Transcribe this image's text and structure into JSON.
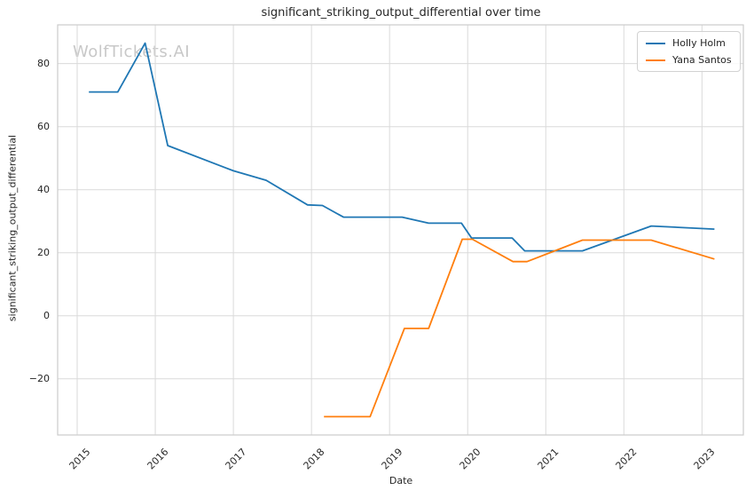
{
  "watermark": "WolfTickets.AI",
  "colors": {
    "background": "#ffffff",
    "grid": "#dadada",
    "spine": "#cccccc",
    "text": "#262626",
    "watermark": "#c8c8c8"
  },
  "chart_data": {
    "type": "line",
    "title": "significant_striking_output_differential over time",
    "xlabel": "Date",
    "ylabel": "significant_striking_output_differential",
    "grid": true,
    "legend_position": "upper right",
    "x_axis": {
      "range": [
        2014.75,
        2023.53
      ],
      "ticks": [
        2015,
        2016,
        2017,
        2018,
        2019,
        2020,
        2021,
        2022,
        2023
      ],
      "tick_labels": [
        "2015",
        "2016",
        "2017",
        "2018",
        "2019",
        "2020",
        "2021",
        "2022",
        "2023"
      ]
    },
    "y_axis": {
      "range": [
        -37.8,
        92.3
      ],
      "ticks": [
        -20,
        0,
        20,
        40,
        60,
        80
      ],
      "tick_labels": [
        "−20",
        "0",
        "20",
        "40",
        "60",
        "80"
      ]
    },
    "series": [
      {
        "name": "Holly Holm",
        "color": "#1f77b4",
        "points": [
          [
            2015.15,
            71
          ],
          [
            2015.52,
            71
          ],
          [
            2015.87,
            86.5
          ],
          [
            2016.16,
            54
          ],
          [
            2017.0,
            46
          ],
          [
            2017.42,
            43
          ],
          [
            2017.95,
            35.2
          ],
          [
            2018.14,
            35
          ],
          [
            2018.41,
            31.3
          ],
          [
            2019.16,
            31.3
          ],
          [
            2019.5,
            29.4
          ],
          [
            2019.92,
            29.4
          ],
          [
            2020.05,
            24.7
          ],
          [
            2020.57,
            24.7
          ],
          [
            2020.73,
            20.6
          ],
          [
            2021.47,
            20.6
          ],
          [
            2022.35,
            28.5
          ],
          [
            2023.16,
            27.5
          ]
        ]
      },
      {
        "name": "Yana Santos",
        "color": "#ff7f0e",
        "points": [
          [
            2018.16,
            -32
          ],
          [
            2018.75,
            -32
          ],
          [
            2019.19,
            -4
          ],
          [
            2019.5,
            -4
          ],
          [
            2019.93,
            24.3
          ],
          [
            2020.06,
            24.3
          ],
          [
            2020.58,
            17.2
          ],
          [
            2020.76,
            17.2
          ],
          [
            2021.47,
            24
          ],
          [
            2022.35,
            24
          ],
          [
            2023.16,
            18
          ]
        ]
      }
    ]
  }
}
